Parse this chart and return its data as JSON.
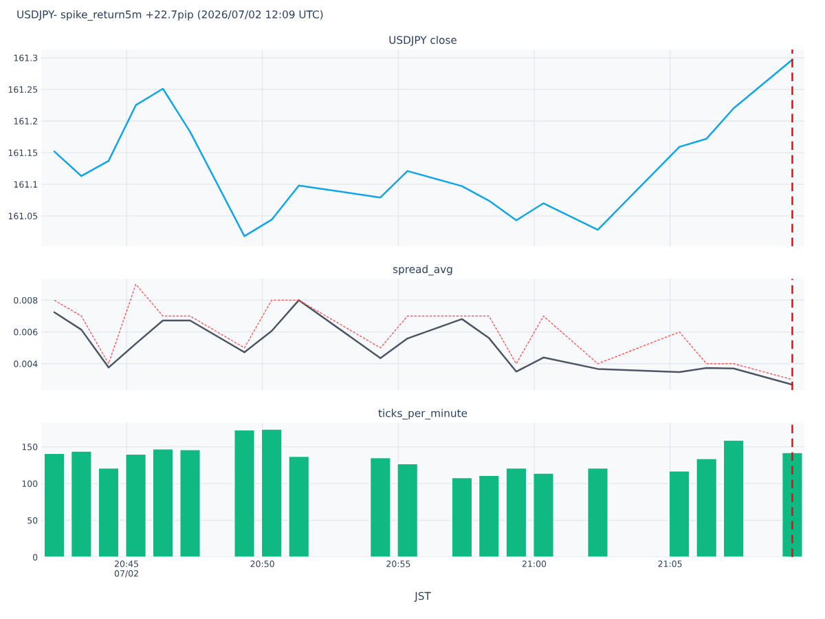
{
  "chart_data": [
    {
      "type": "line",
      "title": "USDJPY close",
      "annotations": [
        "USDJPY- spike_return5m +22.7pip (2026/07/02 12:09 UTC)"
      ],
      "x": [
        20.7057,
        20.7223,
        20.739,
        20.7557,
        20.7723,
        20.789,
        20.8223,
        20.839,
        20.8557,
        20.9057,
        20.9223,
        20.9557,
        20.9723,
        20.989,
        21.0057,
        21.039,
        21.089,
        21.1057,
        21.1223,
        21.1583
      ],
      "series": [
        {
          "color": "#0ea5e9",
          "values": [
            161.152,
            161.113,
            161.137,
            161.225,
            161.251,
            161.183,
            161.018,
            161.044,
            161.098,
            161.079,
            161.121,
            161.097,
            161.074,
            161.043,
            161.07,
            161.028,
            161.159,
            161.172,
            161.22,
            161.297
          ]
        }
      ],
      "xlim": [
        20.6977,
        21.1657
      ],
      "ylim": [
        161.002,
        161.313
      ],
      "xticks": [
        {
          "value": 20.75,
          "label": null
        },
        {
          "value": 20.8333,
          "label": null
        },
        {
          "value": 20.9167,
          "label": null
        },
        {
          "value": 21.0,
          "label": null
        },
        {
          "value": 21.0833,
          "label": null
        }
      ],
      "yticks": [
        161.05,
        161.1,
        161.15,
        161.2,
        161.25,
        161.3
      ],
      "ref_lines": [
        {
          "axis": "x",
          "value": 21.1583,
          "color": "#dd1111",
          "line_style": "dashed"
        }
      ],
      "grid": true,
      "tick_labels": "y"
    },
    {
      "type": "line",
      "title": "spread_avg",
      "x": [
        20.7057,
        20.7223,
        20.739,
        20.7557,
        20.7723,
        20.789,
        20.8223,
        20.839,
        20.8557,
        20.9057,
        20.9223,
        20.9557,
        20.9723,
        20.989,
        21.0057,
        21.039,
        21.089,
        21.1057,
        21.1223,
        21.1583
      ],
      "series": [
        {
          "color": "#4b5563",
          "line_style": "solid",
          "values": [
            0.00724,
            0.00614,
            0.00376,
            0.00526,
            0.00672,
            0.00672,
            0.00472,
            0.00606,
            0.008,
            0.00435,
            0.00559,
            0.00681,
            0.00561,
            0.0035,
            0.00439,
            0.00367,
            0.00347,
            0.00373,
            0.0037,
            0.00268
          ]
        },
        {
          "color": "#ff5555",
          "line_style": "dashed",
          "values": [
            0.008,
            0.007,
            0.004,
            0.009,
            0.007,
            0.007,
            0.005,
            0.008,
            0.008,
            0.005,
            0.007,
            0.007,
            0.007,
            0.004,
            0.007,
            0.004,
            0.006,
            0.004,
            0.004,
            0.003
          ]
        }
      ],
      "xlim": [
        20.6977,
        21.1657
      ],
      "ylim": [
        0.00233,
        0.00935
      ],
      "xticks": [
        {
          "value": 20.75,
          "label": null
        },
        {
          "value": 20.8333,
          "label": null
        },
        {
          "value": 20.9167,
          "label": null
        },
        {
          "value": 21.0,
          "label": null
        },
        {
          "value": 21.0833,
          "label": null
        }
      ],
      "yticks": [
        0.004,
        0.006,
        0.008
      ],
      "ref_lines": [
        {
          "axis": "x",
          "value": 21.1583,
          "color": "#dd1111",
          "line_style": "dashed"
        }
      ],
      "grid": true,
      "tick_labels": "y"
    },
    {
      "type": "bar",
      "title": "ticks_per_minute",
      "xlabel": "JST",
      "x": [
        20.7057,
        20.7223,
        20.739,
        20.7557,
        20.7723,
        20.789,
        20.8223,
        20.839,
        20.8557,
        20.9057,
        20.9223,
        20.9557,
        20.9723,
        20.989,
        21.0057,
        21.039,
        21.089,
        21.1057,
        21.1223,
        21.1583
      ],
      "series": [
        {
          "color": "#10b981",
          "values": [
            141,
            144,
            121,
            140,
            147,
            146,
            173,
            174,
            137,
            135,
            127,
            108,
            111,
            121,
            114,
            121,
            117,
            134,
            159,
            142
          ]
        }
      ],
      "xlim": [
        20.6977,
        21.1657
      ],
      "ylim": [
        0,
        182.8
      ],
      "xticks": [
        {
          "value": 20.75,
          "label": "20:45\n07/02"
        },
        {
          "value": 20.8333,
          "label": "20:50"
        },
        {
          "value": 20.9167,
          "label": "20:55"
        },
        {
          "value": 21.0,
          "label": "21:00"
        },
        {
          "value": 21.0833,
          "label": "21:05"
        }
      ],
      "yticks": [
        0,
        50,
        100,
        150
      ],
      "ref_lines": [
        {
          "axis": "x",
          "value": 21.1583,
          "color": "#dd1111",
          "line_style": "dashed"
        }
      ],
      "grid": true
    }
  ]
}
